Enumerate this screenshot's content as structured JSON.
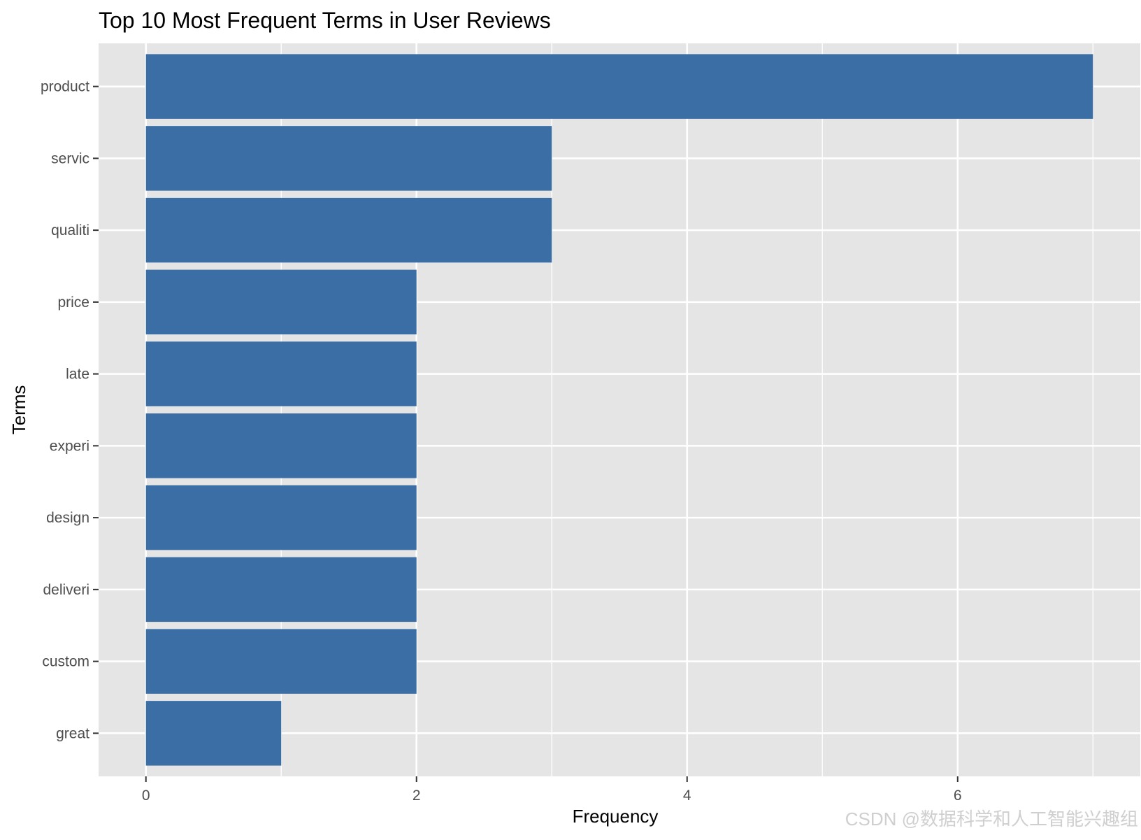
{
  "chart_data": {
    "type": "bar",
    "orientation": "horizontal",
    "title": "Top 10 Most Frequent Terms in User Reviews",
    "xlabel": "Frequency",
    "ylabel": "Terms",
    "categories": [
      "product",
      "servic",
      "qualiti",
      "price",
      "late",
      "experi",
      "design",
      "deliveri",
      "custom",
      "great"
    ],
    "values": [
      7,
      3,
      3,
      2,
      2,
      2,
      2,
      2,
      2,
      1
    ],
    "xlim": [
      -0.35,
      7.35
    ],
    "xticks": [
      0,
      2,
      4,
      6
    ],
    "grid": true,
    "legend": "none",
    "colors": {
      "bar": "#3a6ea5",
      "panel": "#e5e5e5",
      "grid": "#ffffff"
    }
  },
  "watermark": "CSDN @数据科学和人工智能兴趣组"
}
